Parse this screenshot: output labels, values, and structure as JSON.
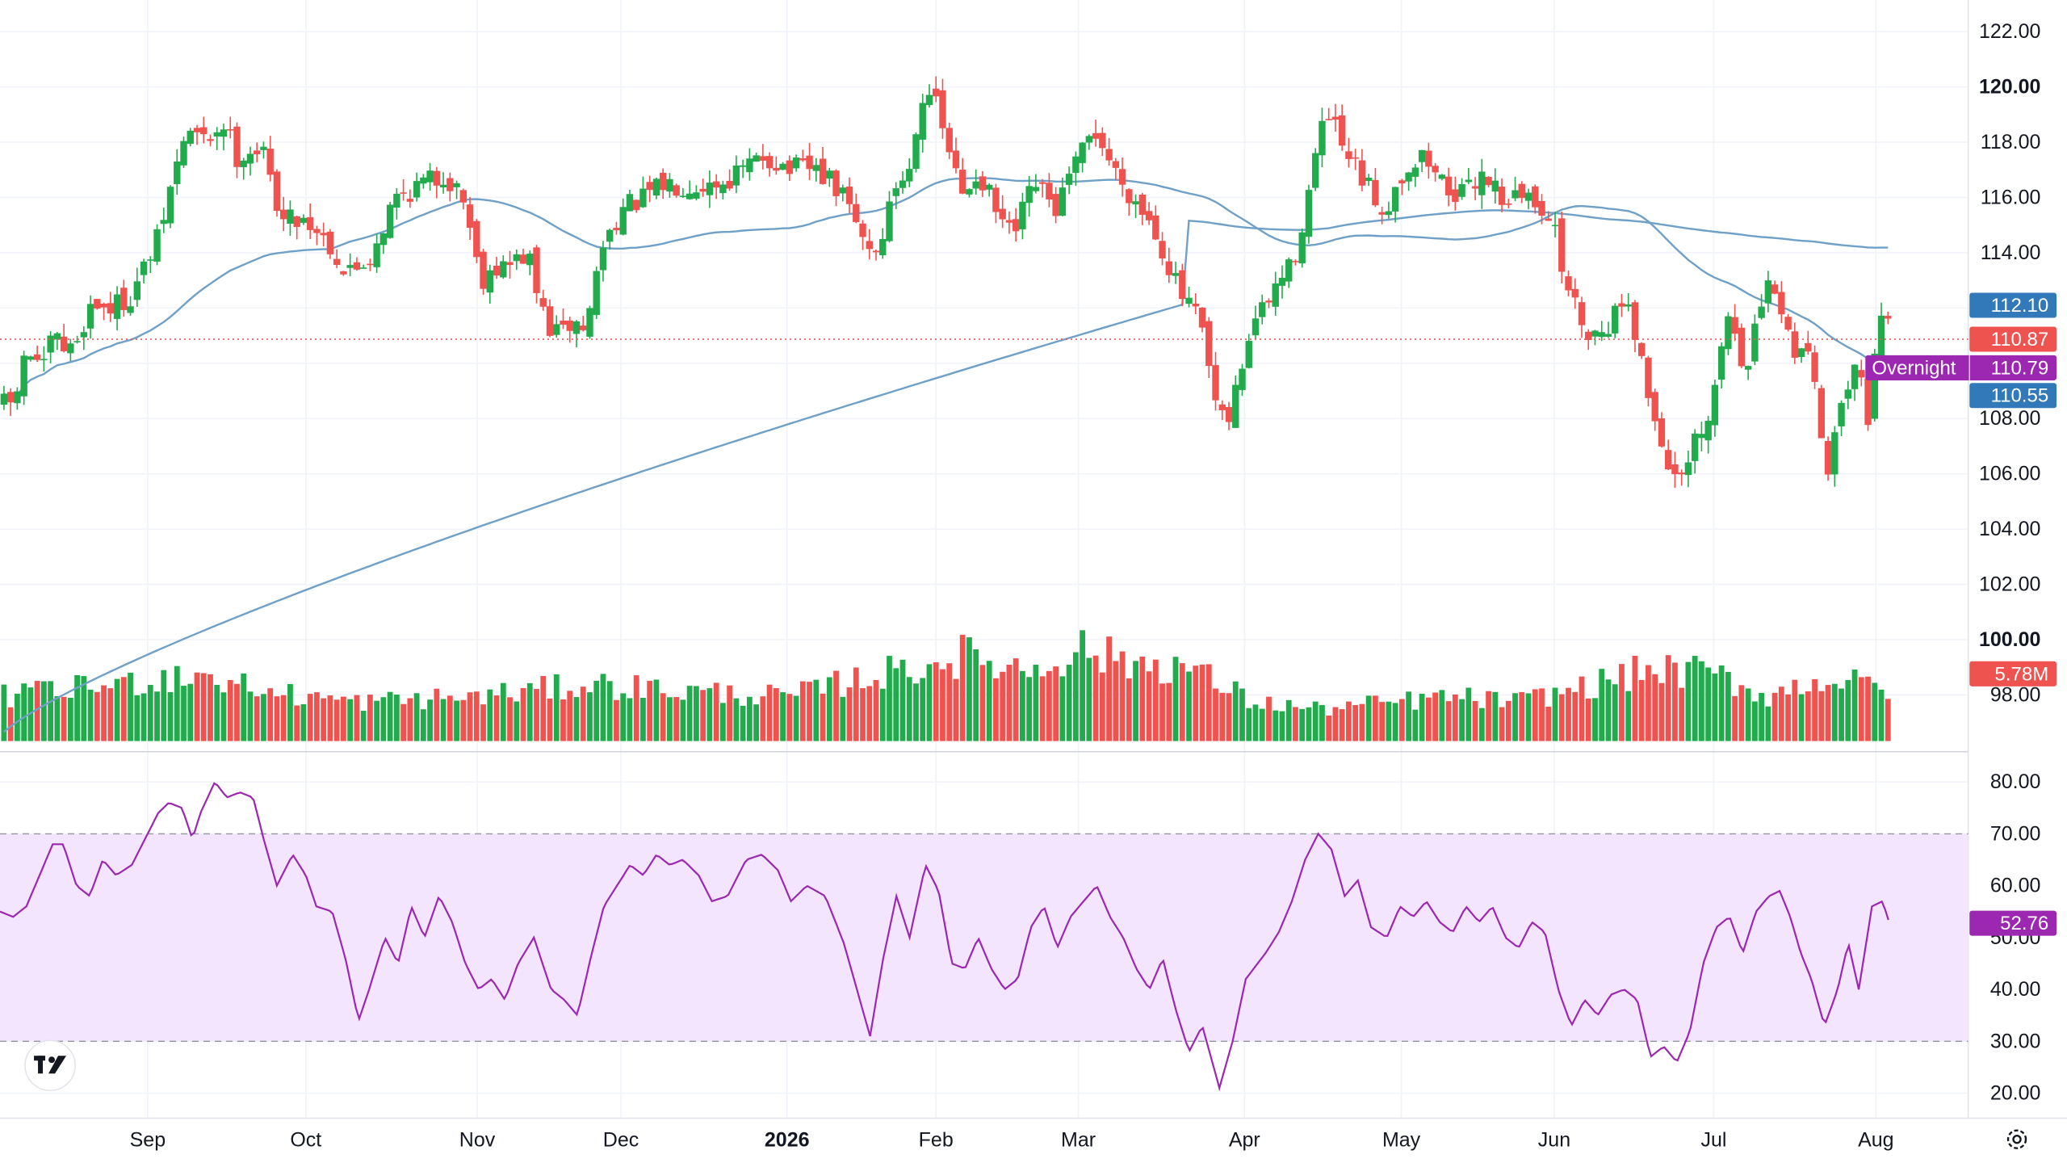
{
  "chart_data": {
    "type": "candlestick",
    "price_axis": {
      "ticks": [
        "122.00",
        "120.00",
        "118.00",
        "116.00",
        "114.00",
        "112.00",
        "110.00",
        "108.00",
        "106.00",
        "104.00",
        "102.00",
        "100.00",
        "98.00"
      ],
      "bold_ticks": [
        "120.00",
        "100.00"
      ],
      "range": [
        96.5,
        123.0
      ]
    },
    "time_axis": {
      "labels": [
        "Sep",
        "Oct",
        "Nov",
        "Dec",
        "2026",
        "Feb",
        "Mar",
        "Apr",
        "May",
        "Jun",
        "Jul",
        "Aug"
      ],
      "bold_labels": [
        "2026"
      ]
    },
    "rsi_axis": {
      "ticks": [
        "80.00",
        "70.00",
        "60.00",
        "50.00",
        "40.00",
        "30.00",
        "20.00"
      ],
      "range": [
        17,
        82
      ],
      "band": [
        30,
        70
      ]
    },
    "price_badges": {
      "ma_fast": "112.10",
      "last_close": "110.87",
      "overnight_label": "Overnight",
      "overnight_value": "110.79",
      "ma_slow": "110.55",
      "volume": "5.78M",
      "rsi": "52.76"
    },
    "colors": {
      "up": "#26a69a",
      "up_volume": "#22ab4c",
      "down": "#ef5350",
      "ma": "#6fa0c8",
      "rsi_line": "#9c27b0",
      "rsi_band": "#f3e5fd",
      "badge_blue": "#3179b8",
      "badge_red": "#ef5350",
      "badge_purple": "#9c27b0"
    },
    "logo": "TradingView logo",
    "settings_icon": "gear-icon",
    "price_anchors": [
      [
        0,
        108.5
      ],
      [
        10,
        108.5
      ],
      [
        18,
        110.0
      ],
      [
        26,
        110.5
      ],
      [
        32,
        109.5
      ],
      [
        40,
        111.0
      ],
      [
        48,
        110.5
      ],
      [
        55,
        110.5
      ],
      [
        70,
        112.2
      ],
      [
        85,
        112.0
      ],
      [
        100,
        112.5
      ],
      [
        120,
        114.5
      ],
      [
        132,
        116.8
      ],
      [
        142,
        118.5
      ],
      [
        155,
        118.0
      ],
      [
        170,
        118.7
      ],
      [
        180,
        117.5
      ],
      [
        193,
        117.8
      ],
      [
        200,
        117.5
      ],
      [
        206,
        116.5
      ],
      [
        215,
        115.2
      ],
      [
        230,
        115.3
      ],
      [
        248,
        114.5
      ],
      [
        262,
        113.2
      ],
      [
        280,
        113.8
      ],
      [
        300,
        116.0
      ],
      [
        320,
        116.5
      ],
      [
        338,
        116.8
      ],
      [
        352,
        116.0
      ],
      [
        365,
        113.0
      ],
      [
        372,
        113.5
      ],
      [
        385,
        113.5
      ],
      [
        400,
        114.0
      ],
      [
        410,
        112.0
      ],
      [
        418,
        111.2
      ],
      [
        425,
        111.0
      ],
      [
        435,
        111.5
      ],
      [
        445,
        111.2
      ],
      [
        455,
        114.0
      ],
      [
        470,
        115.5
      ],
      [
        490,
        116.0
      ],
      [
        505,
        116.5
      ],
      [
        525,
        116.5
      ],
      [
        545,
        116.5
      ],
      [
        565,
        117.0
      ],
      [
        580,
        117.5
      ],
      [
        600,
        117.0
      ],
      [
        620,
        117.0
      ],
      [
        640,
        116.0
      ],
      [
        655,
        114.5
      ],
      [
        665,
        114.0
      ],
      [
        680,
        116.5
      ],
      [
        690,
        117.0
      ],
      [
        697,
        119.5
      ],
      [
        705,
        120.0
      ],
      [
        718,
        118.0
      ],
      [
        730,
        116.0
      ],
      [
        742,
        117.0
      ],
      [
        755,
        115.5
      ],
      [
        768,
        114.5
      ],
      [
        785,
        116.5
      ],
      [
        800,
        115.5
      ],
      [
        815,
        117.0
      ],
      [
        830,
        118.5
      ],
      [
        845,
        117.0
      ],
      [
        860,
        116.0
      ],
      [
        875,
        115.0
      ],
      [
        895,
        112.5
      ],
      [
        910,
        111.5
      ],
      [
        922,
        108.5
      ],
      [
        930,
        107.5
      ],
      [
        940,
        109.5
      ],
      [
        950,
        111.5
      ],
      [
        960,
        112.0
      ],
      [
        970,
        113.0
      ],
      [
        980,
        113.5
      ],
      [
        990,
        115.5
      ],
      [
        1000,
        118.0
      ],
      [
        1008,
        119.0
      ],
      [
        1020,
        117.5
      ],
      [
        1035,
        116.5
      ],
      [
        1050,
        115.5
      ],
      [
        1065,
        117.0
      ],
      [
        1080,
        117.5
      ],
      [
        1095,
        116.5
      ],
      [
        1110,
        116.0
      ],
      [
        1125,
        117.0
      ],
      [
        1140,
        116.0
      ],
      [
        1160,
        116.0
      ],
      [
        1175,
        115.5
      ],
      [
        1185,
        113.5
      ],
      [
        1195,
        112.0
      ],
      [
        1208,
        111.0
      ],
      [
        1220,
        111.5
      ],
      [
        1235,
        112.5
      ],
      [
        1245,
        110.0
      ],
      [
        1255,
        108.0
      ],
      [
        1265,
        106.5
      ],
      [
        1275,
        105.5
      ],
      [
        1285,
        107.0
      ],
      [
        1295,
        107.5
      ],
      [
        1302,
        109.5
      ],
      [
        1312,
        112.0
      ],
      [
        1325,
        109.5
      ],
      [
        1335,
        112.0
      ],
      [
        1345,
        113.0
      ],
      [
        1352,
        111.5
      ],
      [
        1362,
        110.5
      ],
      [
        1375,
        110.5
      ],
      [
        1384,
        106.0
      ],
      [
        1394,
        107.5
      ],
      [
        1400,
        109.0
      ],
      [
        1410,
        111.0
      ],
      [
        1416,
        107.5
      ],
      [
        1422,
        110.0
      ],
      [
        1428,
        112.5
      ],
      [
        1433,
        110.9
      ]
    ],
    "rsi_anchors": [
      [
        0,
        55
      ],
      [
        10,
        54
      ],
      [
        20,
        56
      ],
      [
        30,
        62
      ],
      [
        40,
        68
      ],
      [
        48,
        68
      ],
      [
        58,
        60
      ],
      [
        68,
        58
      ],
      [
        78,
        65
      ],
      [
        88,
        62
      ],
      [
        100,
        64
      ],
      [
        112,
        70
      ],
      [
        120,
        74
      ],
      [
        128,
        76
      ],
      [
        138,
        75
      ],
      [
        146,
        69
      ],
      [
        152,
        74
      ],
      [
        163,
        80
      ],
      [
        172,
        77
      ],
      [
        182,
        78
      ],
      [
        192,
        77
      ],
      [
        200,
        69
      ],
      [
        210,
        60
      ],
      [
        222,
        66
      ],
      [
        232,
        62
      ],
      [
        240,
        56
      ],
      [
        252,
        55
      ],
      [
        262,
        46
      ],
      [
        272,
        34
      ],
      [
        280,
        40
      ],
      [
        292,
        50
      ],
      [
        302,
        45
      ],
      [
        312,
        56
      ],
      [
        322,
        50
      ],
      [
        333,
        58
      ],
      [
        343,
        53
      ],
      [
        353,
        45
      ],
      [
        363,
        40
      ],
      [
        373,
        42
      ],
      [
        383,
        38
      ],
      [
        393,
        45
      ],
      [
        405,
        50
      ],
      [
        418,
        40
      ],
      [
        428,
        38
      ],
      [
        438,
        35
      ],
      [
        448,
        46
      ],
      [
        458,
        56
      ],
      [
        468,
        60
      ],
      [
        478,
        64
      ],
      [
        488,
        62
      ],
      [
        498,
        66
      ],
      [
        508,
        64
      ],
      [
        518,
        65
      ],
      [
        530,
        62
      ],
      [
        540,
        57
      ],
      [
        552,
        58
      ],
      [
        566,
        65
      ],
      [
        578,
        66
      ],
      [
        590,
        63
      ],
      [
        600,
        57
      ],
      [
        612,
        60
      ],
      [
        626,
        58
      ],
      [
        640,
        49
      ],
      [
        650,
        40
      ],
      [
        660,
        31
      ],
      [
        670,
        46
      ],
      [
        680,
        58
      ],
      [
        690,
        50
      ],
      [
        702,
        64
      ],
      [
        712,
        59
      ],
      [
        722,
        45
      ],
      [
        732,
        44
      ],
      [
        742,
        50
      ],
      [
        752,
        44
      ],
      [
        762,
        40
      ],
      [
        772,
        42
      ],
      [
        782,
        52
      ],
      [
        792,
        56
      ],
      [
        802,
        48
      ],
      [
        812,
        54
      ],
      [
        822,
        57
      ],
      [
        832,
        60
      ],
      [
        842,
        54
      ],
      [
        852,
        50
      ],
      [
        862,
        44
      ],
      [
        872,
        40
      ],
      [
        882,
        46
      ],
      [
        892,
        36
      ],
      [
        902,
        28
      ],
      [
        912,
        33
      ],
      [
        925,
        21
      ],
      [
        935,
        30
      ],
      [
        945,
        42
      ],
      [
        960,
        47
      ],
      [
        970,
        51
      ],
      [
        980,
        57
      ],
      [
        990,
        65
      ],
      [
        1000,
        70
      ],
      [
        1010,
        67
      ],
      [
        1020,
        58
      ],
      [
        1030,
        61
      ],
      [
        1040,
        52
      ],
      [
        1052,
        50
      ],
      [
        1062,
        56
      ],
      [
        1072,
        54
      ],
      [
        1082,
        57
      ],
      [
        1092,
        53
      ],
      [
        1102,
        51
      ],
      [
        1112,
        56
      ],
      [
        1122,
        53
      ],
      [
        1132,
        56
      ],
      [
        1142,
        50
      ],
      [
        1152,
        48
      ],
      [
        1162,
        53
      ],
      [
        1172,
        51
      ],
      [
        1182,
        40
      ],
      [
        1192,
        33
      ],
      [
        1202,
        38
      ],
      [
        1212,
        35
      ],
      [
        1222,
        39
      ],
      [
        1232,
        40
      ],
      [
        1242,
        38
      ],
      [
        1252,
        27
      ],
      [
        1262,
        29
      ],
      [
        1272,
        26
      ],
      [
        1282,
        32
      ],
      [
        1292,
        45
      ],
      [
        1302,
        52
      ],
      [
        1312,
        54
      ],
      [
        1322,
        47
      ],
      [
        1332,
        55
      ],
      [
        1342,
        58
      ],
      [
        1350,
        59
      ],
      [
        1358,
        54
      ],
      [
        1366,
        47
      ],
      [
        1374,
        42
      ],
      [
        1384,
        33
      ],
      [
        1394,
        40
      ],
      [
        1402,
        49
      ],
      [
        1410,
        40
      ],
      [
        1420,
        56
      ],
      [
        1428,
        57
      ],
      [
        1433,
        53
      ]
    ],
    "volume_bins": [
      [
        0,
        25
      ],
      [
        90,
        32
      ],
      [
        150,
        38
      ],
      [
        200,
        28
      ],
      [
        270,
        22
      ],
      [
        360,
        25
      ],
      [
        450,
        32
      ],
      [
        520,
        28
      ],
      [
        600,
        25
      ],
      [
        650,
        35
      ],
      [
        700,
        42
      ],
      [
        730,
        48
      ],
      [
        780,
        40
      ],
      [
        820,
        52
      ],
      [
        850,
        45
      ],
      [
        900,
        42
      ],
      [
        950,
        22
      ],
      [
        1000,
        18
      ],
      [
        1060,
        22
      ],
      [
        1100,
        25
      ],
      [
        1150,
        22
      ],
      [
        1200,
        30
      ],
      [
        1250,
        40
      ],
      [
        1300,
        38
      ],
      [
        1340,
        25
      ],
      [
        1380,
        35
      ],
      [
        1433,
        30
      ]
    ]
  }
}
